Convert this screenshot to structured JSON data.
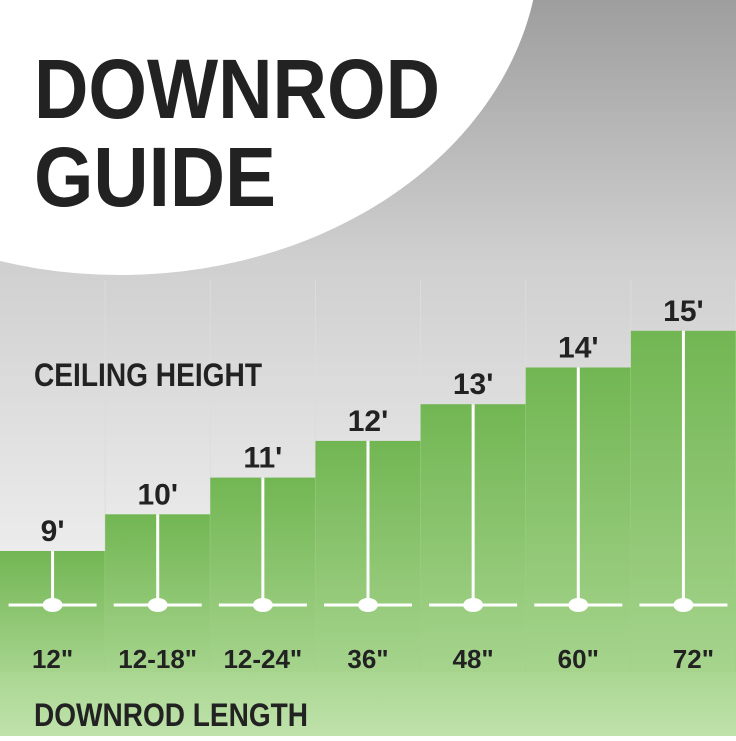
{
  "title_line1": "DOWNROD",
  "title_line2": "GUIDE",
  "colors": {
    "bar_green": "#7dbf5e",
    "bottom_band": "#b3dc9c",
    "text": "#222222",
    "background": "#c8c8c8"
  },
  "chart_data": {
    "type": "bar",
    "y_label": "CEILING HEIGHT",
    "x_label": "DOWNROD LENGTH",
    "categories": [
      "12\"",
      "12-18\"",
      "12-24\"",
      "36\"",
      "48\"",
      "60\"",
      "72\""
    ],
    "values": [
      9,
      10,
      11,
      12,
      13,
      14,
      15
    ],
    "value_labels": [
      "9'",
      "10'",
      "11'",
      "12'",
      "13'",
      "14'",
      "15'"
    ],
    "icon": "ceiling-fan-icon"
  }
}
